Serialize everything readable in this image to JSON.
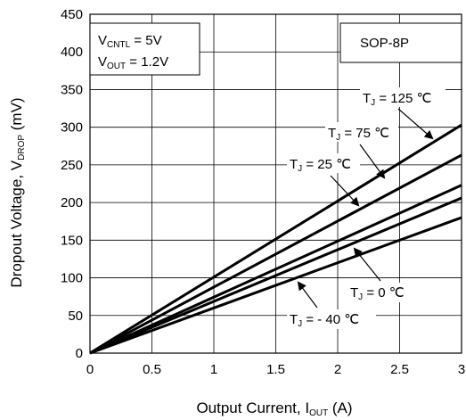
{
  "chart_data": {
    "type": "line",
    "xlabel": "Output Current, I",
    "xlabel_sub": "OUT",
    "xlabel_unit": " (A)",
    "ylabel": "Dropout Voltage, V",
    "ylabel_sub": "DROP",
    "ylabel_unit": " (mV)",
    "xlim": [
      0,
      3
    ],
    "ylim": [
      0,
      450
    ],
    "x_ticks": [
      "0",
      "0.5",
      "1",
      "1.5",
      "2",
      "2.5",
      "3"
    ],
    "y_ticks": [
      "0",
      "50",
      "100",
      "150",
      "200",
      "250",
      "300",
      "350",
      "400",
      "450"
    ],
    "grid": true,
    "package_label": "SOP-8P",
    "conditions": [
      {
        "prefix": "V",
        "sub": "CNTL",
        "value": " = 5V"
      },
      {
        "prefix": "V",
        "sub": "OUT",
        "value": " = 1.2V"
      }
    ],
    "series": [
      {
        "name_prefix": "T",
        "name_sub": "J",
        "name_value": " = 125 ℃",
        "x": [
          0,
          3
        ],
        "y": [
          0,
          303
        ]
      },
      {
        "name_prefix": "T",
        "name_sub": "J",
        "name_value": " = 75 ℃",
        "x": [
          0,
          3
        ],
        "y": [
          0,
          263
        ]
      },
      {
        "name_prefix": "T",
        "name_sub": "J",
        "name_value": " = 25 ℃",
        "x": [
          0,
          3
        ],
        "y": [
          0,
          223
        ]
      },
      {
        "name_prefix": "T",
        "name_sub": "J",
        "name_value": " = 0 ℃",
        "x": [
          0,
          3
        ],
        "y": [
          0,
          206
        ]
      },
      {
        "name_prefix": "T",
        "name_sub": "J",
        "name_value": " = - 40 ℃",
        "x": [
          0,
          3
        ],
        "y": [
          0,
          180
        ]
      }
    ]
  }
}
